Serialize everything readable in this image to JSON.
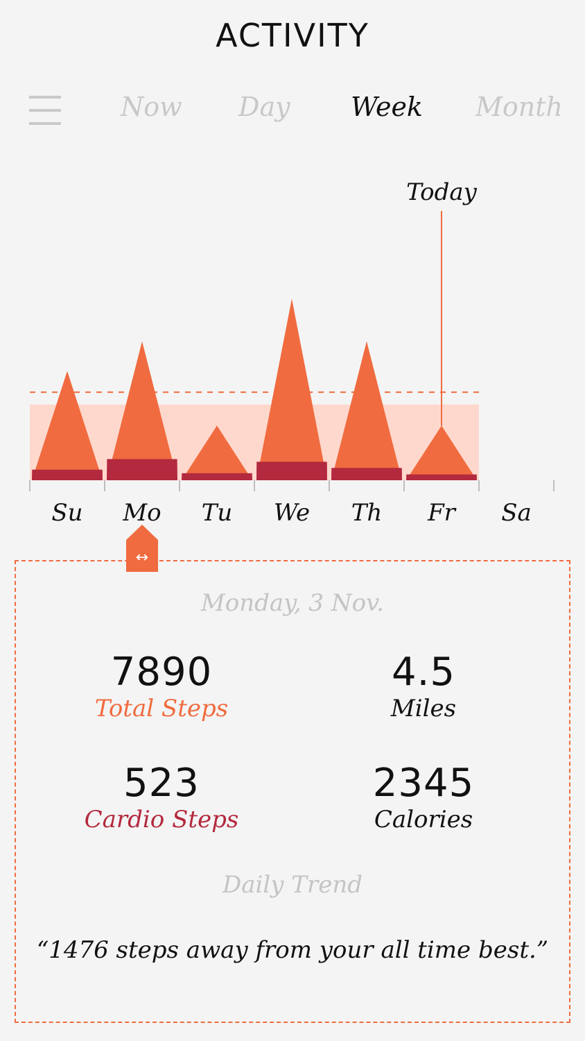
{
  "header": {
    "title": "ACTIVITY"
  },
  "tabs": [
    {
      "label": "Now",
      "active": false
    },
    {
      "label": "Day",
      "active": false
    },
    {
      "label": "Week",
      "active": true
    },
    {
      "label": "Month",
      "active": false
    }
  ],
  "icons": {
    "menu": "hamburger-icon",
    "selector": "left-right-arrow-icon"
  },
  "colors": {
    "background": "#f4f4f4",
    "accent": "#f06b3f",
    "cardio": "#b3293d",
    "band": "#ffd8cd",
    "muted": "#c4c4c4"
  },
  "chart_data": {
    "type": "area",
    "categories": [
      "Su",
      "Mo",
      "Tu",
      "We",
      "Th",
      "Fr",
      "Sa"
    ],
    "series": [
      {
        "values": [
          6200,
          7890,
          3100,
          10300,
          7890,
          3100,
          null
        ]
      },
      {
        "values": [
          600,
          1200,
          400,
          1050,
          700,
          330,
          null
        ]
      }
    ],
    "ylim": [
      0,
      13000
    ],
    "goal_line": 5000,
    "target_band": [
      0,
      4300
    ],
    "today_index": 5,
    "today_label": "Today",
    "selected_index": 1,
    "grid": false,
    "title": "",
    "xlabel": "",
    "ylabel": ""
  },
  "detail": {
    "date": "Monday, 3 Nov.",
    "stats": {
      "total_steps": {
        "value": "7890",
        "label": "Total Steps"
      },
      "miles": {
        "value": "4.5",
        "label": "Miles"
      },
      "cardio_steps": {
        "value": "523",
        "label": "Cardio Steps"
      },
      "calories": {
        "value": "2345",
        "label": "Calories"
      }
    },
    "trend_heading": "Daily Trend",
    "trend_text": "“1476 steps away from your all time best.”"
  }
}
